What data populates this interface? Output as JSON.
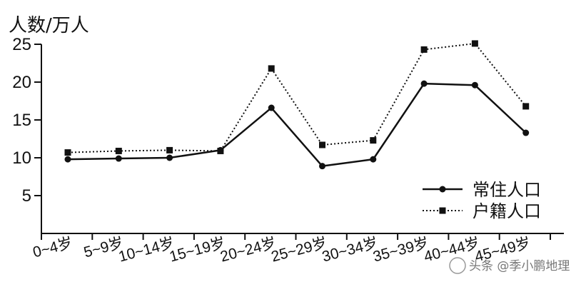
{
  "chart_data": {
    "type": "line",
    "ylabel": "人数/万人",
    "xlabel": "",
    "ylim": [
      0,
      25
    ],
    "yticks": [
      5,
      10,
      15,
      20,
      25
    ],
    "categories": [
      "0~4岁",
      "5~9岁",
      "10~14岁",
      "15~19岁",
      "20~24岁",
      "25~29岁",
      "30~34岁",
      "35~39岁",
      "40~44岁",
      "45~49岁"
    ],
    "series": [
      {
        "name": "常住人口",
        "marker": "circle",
        "line_style": "solid",
        "values": [
          9.8,
          9.9,
          10.0,
          11.0,
          16.6,
          8.9,
          9.8,
          19.8,
          19.6,
          13.3
        ]
      },
      {
        "name": "户籍人口",
        "marker": "square",
        "line_style": "dotted",
        "values": [
          10.7,
          10.9,
          11.0,
          10.9,
          21.8,
          11.7,
          12.3,
          24.3,
          25.1,
          16.8
        ]
      }
    ],
    "grid": false,
    "legend_position": "bottom-right"
  },
  "watermark": {
    "text": "头条 @季小鹏地理"
  }
}
